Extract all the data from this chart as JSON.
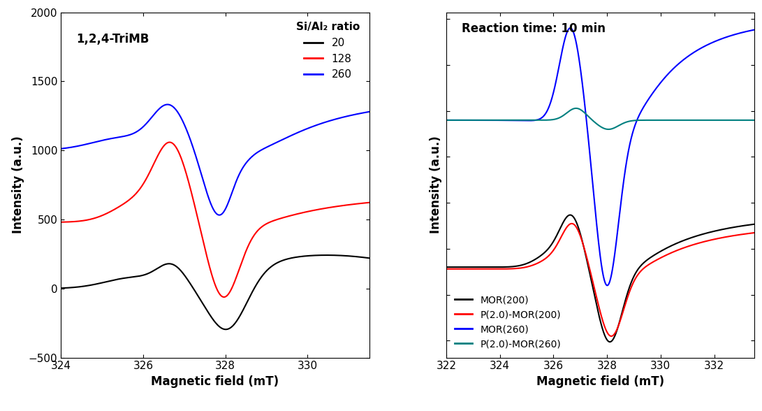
{
  "left_panel": {
    "title": "1,2,4-TriMB",
    "xlabel": "Magnetic field (mT)",
    "ylabel": "Intensity (a.u.)",
    "xlim": [
      324,
      331.5
    ],
    "ylim": [
      -500,
      2000
    ],
    "yticks": [
      -500,
      0,
      500,
      1000,
      1500,
      2000
    ],
    "xticks": [
      324,
      326,
      328,
      330
    ],
    "legend_title": "Si/Al₂ ratio",
    "legend_labels": [
      "20",
      "128",
      "260"
    ],
    "legend_colors": [
      "black",
      "red",
      "blue"
    ]
  },
  "right_panel": {
    "title": "Reaction time: 10 min",
    "xlabel": "Magnetic field (mT)",
    "ylabel": "Intensity (a.u.)",
    "xlim": [
      322,
      333.5
    ],
    "xticks": [
      322,
      324,
      326,
      328,
      330,
      332
    ],
    "legend_labels": [
      "MOR(200)",
      "P(2.0)-MOR(200)",
      "MOR(260)",
      "P(2.0)-MOR(260)"
    ],
    "legend_colors": [
      "black",
      "red",
      "blue",
      "teal"
    ]
  },
  "background_color": "#ffffff"
}
